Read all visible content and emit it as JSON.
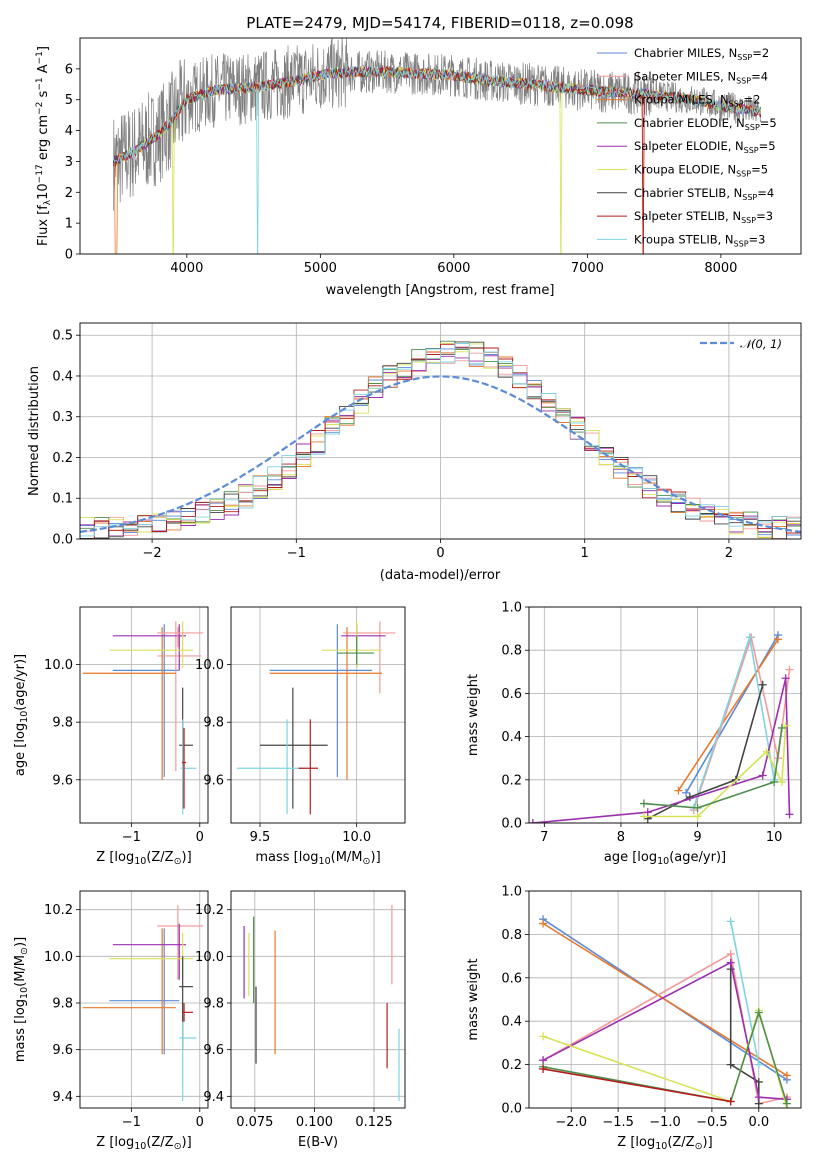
{
  "figure": {
    "title": "PLATE=2479, MJD=54174, FIBERID=0118, z=0.098"
  },
  "colors": {
    "chabrier_miles": "#5b8bd9",
    "salpeter_miles": "#f39a9a",
    "kroupa_miles": "#e8782a",
    "chabrier_elodie": "#4e8f4e",
    "salpeter_elodie": "#9b2fb0",
    "kroupa_elodie": "#d7e256",
    "chabrier_stelib": "#444444",
    "salpeter_stelib": "#b51d1d",
    "kroupa_stelib": "#7fd4e0",
    "data": "#808080",
    "normal": "#5b8bd9"
  },
  "legend_entries": [
    {
      "key": "chabrier_miles",
      "base": "Chabrier MILES, N",
      "sub": "SSP",
      "tail": "=2"
    },
    {
      "key": "salpeter_miles",
      "base": "Salpeter MILES, N",
      "sub": "SSP",
      "tail": "=4"
    },
    {
      "key": "kroupa_miles",
      "base": "Kroupa MILES, N",
      "sub": "SSP",
      "tail": "=2"
    },
    {
      "key": "chabrier_elodie",
      "base": "Chabrier ELODIE, N",
      "sub": "SSP",
      "tail": "=5"
    },
    {
      "key": "salpeter_elodie",
      "base": "Salpeter ELODIE, N",
      "sub": "SSP",
      "tail": "=5"
    },
    {
      "key": "kroupa_elodie",
      "base": "Kroupa ELODIE, N",
      "sub": "SSP",
      "tail": "=5"
    },
    {
      "key": "chabrier_stelib",
      "base": "Chabrier STELIB, N",
      "sub": "SSP",
      "tail": "=4"
    },
    {
      "key": "salpeter_stelib",
      "base": "Salpeter STELIB, N",
      "sub": "SSP",
      "tail": "=3"
    },
    {
      "key": "kroupa_stelib",
      "base": "Kroupa STELIB, N",
      "sub": "SSP",
      "tail": "=3"
    }
  ],
  "chart_data": [
    {
      "id": "spectrum",
      "type": "line",
      "xlabel": "wavelength [Angstrom, rest frame]",
      "ylabel": "Flux [f_λ 10^-17 erg cm^-2 s^-1 A^-1]",
      "xlim": [
        3200,
        8600
      ],
      "ylim": [
        0,
        7
      ],
      "xticks": [
        4000,
        5000,
        6000,
        7000,
        8000
      ],
      "yticks": [
        0,
        1,
        2,
        3,
        4,
        5,
        6
      ],
      "continuum_x": [
        3450,
        3500,
        3600,
        3700,
        3800,
        3900,
        4000,
        4200,
        4500,
        4800,
        5000,
        5200,
        5500,
        6000,
        6300,
        6600,
        7000,
        7400,
        7800,
        8000,
        8300
      ],
      "continuum_y": [
        3.0,
        3.1,
        3.3,
        3.6,
        3.9,
        4.4,
        5.0,
        5.3,
        5.4,
        5.6,
        5.8,
        5.9,
        5.9,
        5.8,
        5.6,
        5.5,
        5.3,
        5.2,
        5.0,
        4.8,
        4.6
      ],
      "x_range": [
        3450,
        8300
      ]
    },
    {
      "id": "residuals",
      "type": "step",
      "xlabel": "(data-model)/error",
      "ylabel": "Normed distribution",
      "xlim": [
        -2.5,
        2.5
      ],
      "ylim": [
        0,
        0.53
      ],
      "xticks": [
        -2,
        -1,
        0,
        1,
        2
      ],
      "yticks": [
        0.0,
        0.1,
        0.2,
        0.3,
        0.4,
        0.5
      ],
      "legend": "N(0,1)",
      "bins": [
        -2.5,
        2.5
      ],
      "bin_width": 0.1
    },
    {
      "id": "age_vs_Z",
      "type": "errorbar",
      "xlabel": "Z [log10(Z/Z⊙)]",
      "ylabel": "age  [log10(age/yr)]",
      "xlim": [
        -1.75,
        0.12
      ],
      "ylim": [
        9.45,
        10.2
      ],
      "xticks": [
        -1,
        0
      ],
      "yticks": [
        9.6,
        9.8,
        10.0
      ],
      "points": [
        {
          "k": "chabrier_miles",
          "x": -0.52,
          "y": 9.98,
          "xe": [
            -1.27,
            -0.3
          ],
          "ye": [
            9.61,
            10.14
          ]
        },
        {
          "k": "salpeter_miles",
          "x": -0.35,
          "y": 10.03,
          "xe": [
            -0.62,
            0.02
          ],
          "ye": [
            9.63,
            10.15
          ]
        },
        {
          "k": "kroupa_miles",
          "x": -0.55,
          "y": 9.97,
          "xe": [
            -1.71,
            -0.35
          ],
          "ye": [
            9.6,
            10.13
          ]
        },
        {
          "k": "salpeter_elodie",
          "x": -0.3,
          "y": 10.1,
          "xe": [
            -1.27,
            -0.2
          ],
          "ye": [
            9.98,
            10.14
          ]
        },
        {
          "k": "kroupa_elodie",
          "x": -0.25,
          "y": 10.05,
          "xe": [
            -1.32,
            -0.1
          ],
          "ye": [
            9.99,
            10.15
          ]
        },
        {
          "k": "chabrier_stelib",
          "x": -0.25,
          "y": 9.72,
          "xe": [
            -0.3,
            -0.1
          ],
          "ye": [
            9.5,
            9.92
          ]
        },
        {
          "k": "kroupa_stelib",
          "x": -0.25,
          "y": 9.64,
          "xe": [
            -0.28,
            -0.05
          ],
          "ye": [
            9.48,
            9.81
          ]
        },
        {
          "k": "salpeter_stelib",
          "x": -0.23,
          "y": 9.66,
          "xe": [
            -0.26,
            -0.2
          ],
          "ye": [
            9.5,
            9.78
          ]
        },
        {
          "k": "salpeter_miles",
          "x": -0.32,
          "y": 10.11,
          "xe": [
            -0.62,
            0.05
          ],
          "ye": [
            10.06,
            10.13
          ]
        }
      ]
    },
    {
      "id": "age_vs_mass",
      "type": "errorbar",
      "xlabel": "mass [log10(M/M⊙)]",
      "ylabel": "",
      "xlim": [
        9.35,
        10.25
      ],
      "ylim": [
        9.45,
        10.2
      ],
      "xticks": [
        9.5,
        10.0
      ],
      "yticks": [
        9.6,
        9.8,
        10.0
      ],
      "points": [
        {
          "k": "chabrier_miles",
          "x": 9.9,
          "y": 9.98,
          "xe": [
            9.55,
            10.08
          ],
          "ye": [
            9.61,
            10.14
          ]
        },
        {
          "k": "salpeter_miles",
          "x": 10.12,
          "y": 10.11,
          "xe": [
            9.93,
            10.2
          ],
          "ye": [
            9.9,
            10.15
          ]
        },
        {
          "k": "kroupa_miles",
          "x": 9.95,
          "y": 9.97,
          "xe": [
            9.55,
            10.13
          ],
          "ye": [
            9.6,
            10.13
          ]
        },
        {
          "k": "salpeter_elodie",
          "x": 10.0,
          "y": 10.1,
          "xe": [
            9.92,
            10.15
          ],
          "ye": [
            9.99,
            10.14
          ]
        },
        {
          "k": "kroupa_elodie",
          "x": 10.0,
          "y": 10.05,
          "xe": [
            9.82,
            10.13
          ],
          "ye": [
            9.99,
            10.15
          ]
        },
        {
          "k": "chabrier_elodie",
          "x": 10.0,
          "y": 10.04,
          "xe": [
            9.9,
            10.09
          ],
          "ye": [
            10.0,
            10.1
          ]
        },
        {
          "k": "chabrier_stelib",
          "x": 9.67,
          "y": 9.72,
          "xe": [
            9.5,
            9.85
          ],
          "ye": [
            9.5,
            9.92
          ]
        },
        {
          "k": "kroupa_stelib",
          "x": 9.64,
          "y": 9.64,
          "xe": [
            9.38,
            9.72
          ],
          "ye": [
            9.48,
            9.81
          ]
        },
        {
          "k": "salpeter_stelib",
          "x": 9.76,
          "y": 9.64,
          "xe": [
            9.7,
            9.8
          ],
          "ye": [
            9.48,
            9.81
          ]
        }
      ]
    },
    {
      "id": "weight_vs_age",
      "type": "line",
      "xlabel": "age  [log10(age/yr)]",
      "ylabel": "mass weight",
      "xlim": [
        6.8,
        10.35
      ],
      "ylim": [
        0,
        1
      ],
      "xticks": [
        7,
        8,
        9,
        10
      ],
      "yticks": [
        0.0,
        0.2,
        0.4,
        0.6,
        0.8,
        1.0
      ],
      "series": [
        {
          "k": "chabrier_miles",
          "x": [
            8.85,
            10.05
          ],
          "y": [
            0.14,
            0.87
          ]
        },
        {
          "k": "kroupa_miles",
          "x": [
            8.75,
            10.05
          ],
          "y": [
            0.15,
            0.85
          ]
        },
        {
          "k": "salpeter_miles",
          "x": [
            8.95,
            9.7,
            10.05,
            10.2
          ],
          "y": [
            0.06,
            0.86,
            0.3,
            0.71
          ]
        },
        {
          "k": "kroupa_stelib",
          "x": [
            8.95,
            9.68,
            10.0
          ],
          "y": [
            0.07,
            0.86,
            0.2
          ]
        },
        {
          "k": "chabrier_stelib",
          "x": [
            8.35,
            8.9,
            9.5,
            9.85
          ],
          "y": [
            0.02,
            0.12,
            0.2,
            0.64
          ]
        },
        {
          "k": "salpeter_elodie",
          "x": [
            6.85,
            8.35,
            9.85,
            10.15,
            10.2
          ],
          "y": [
            0.0,
            0.05,
            0.22,
            0.67,
            0.04
          ]
        },
        {
          "k": "kroupa_elodie",
          "x": [
            8.3,
            9.0,
            9.9,
            10.1,
            10.15
          ],
          "y": [
            0.03,
            0.03,
            0.33,
            0.19,
            0.45
          ]
        },
        {
          "k": "chabrier_elodie",
          "x": [
            8.3,
            9.0,
            10.0,
            10.1
          ],
          "y": [
            0.09,
            0.07,
            0.19,
            0.44
          ]
        }
      ]
    },
    {
      "id": "mass_vs_Z",
      "type": "errorbar",
      "xlabel": "Z [log10(Z/Z⊙)]",
      "ylabel": "mass [log10(M/M⊙)]",
      "xlim": [
        -1.75,
        0.12
      ],
      "ylim": [
        9.35,
        10.28
      ],
      "xticks": [
        -1,
        0
      ],
      "yticks": [
        9.4,
        9.6,
        9.8,
        10.0,
        10.2
      ],
      "points": [
        {
          "k": "chabrier_miles",
          "x": -0.52,
          "y": 9.81,
          "xe": [
            -1.32,
            -0.3
          ],
          "ye": [
            9.58,
            10.12
          ]
        },
        {
          "k": "kroupa_miles",
          "x": -0.55,
          "y": 9.78,
          "xe": [
            -1.71,
            -0.35
          ],
          "ye": [
            9.58,
            10.12
          ]
        },
        {
          "k": "salpeter_miles",
          "x": -0.32,
          "y": 10.13,
          "xe": [
            -0.62,
            0.05
          ],
          "ye": [
            9.9,
            10.22
          ]
        },
        {
          "k": "salpeter_elodie",
          "x": -0.3,
          "y": 10.05,
          "xe": [
            -1.27,
            -0.2
          ],
          "ye": [
            9.9,
            10.14
          ]
        },
        {
          "k": "kroupa_elodie",
          "x": -0.25,
          "y": 9.99,
          "xe": [
            -1.32,
            -0.1
          ],
          "ye": [
            9.9,
            10.1
          ]
        },
        {
          "k": "chabrier_stelib",
          "x": -0.25,
          "y": 9.87,
          "xe": [
            -0.3,
            -0.1
          ],
          "ye": [
            9.6,
            10.0
          ]
        },
        {
          "k": "salpeter_stelib",
          "x": -0.23,
          "y": 9.76,
          "xe": [
            -0.26,
            -0.1
          ],
          "ye": [
            9.72,
            9.8
          ]
        },
        {
          "k": "kroupa_stelib",
          "x": -0.25,
          "y": 9.65,
          "xe": [
            -0.3,
            -0.05
          ],
          "ye": [
            9.38,
            9.72
          ]
        }
      ]
    },
    {
      "id": "mass_vs_ebv",
      "type": "errorbar",
      "xlabel": "E(B-V)",
      "ylabel": "",
      "xlim": [
        0.065,
        0.138
      ],
      "ylim": [
        9.35,
        10.28
      ],
      "xticks": [
        0.075,
        0.1,
        0.125
      ],
      "yticks": [
        9.4,
        9.6,
        9.8,
        10.0,
        10.2
      ],
      "points": [
        {
          "k": "salpeter_elodie",
          "x": 0.0705,
          "y": 9.98,
          "xe": [
            0.0705,
            0.0705
          ],
          "ye": [
            9.82,
            10.13
          ]
        },
        {
          "k": "kroupa_elodie",
          "x": 0.0725,
          "y": 10.0,
          "xe": [
            0.0725,
            0.0725
          ],
          "ye": [
            9.83,
            10.1
          ]
        },
        {
          "k": "chabrier_elodie",
          "x": 0.0745,
          "y": 9.96,
          "xe": [
            0.0745,
            0.0745
          ],
          "ye": [
            9.8,
            10.17
          ]
        },
        {
          "k": "chabrier_stelib",
          "x": 0.0755,
          "y": 9.7,
          "xe": [
            0.0755,
            0.0755
          ],
          "ye": [
            9.54,
            9.87
          ]
        },
        {
          "k": "kroupa_miles",
          "x": 0.0835,
          "y": 9.85,
          "xe": [
            0.0835,
            0.0835
          ],
          "ye": [
            9.58,
            10.11
          ]
        },
        {
          "k": "salpeter_miles",
          "x": 0.1325,
          "y": 10.05,
          "xe": [
            0.1325,
            0.1325
          ],
          "ye": [
            9.88,
            10.22
          ]
        },
        {
          "k": "salpeter_stelib",
          "x": 0.1305,
          "y": 9.66,
          "xe": [
            0.1305,
            0.1305
          ],
          "ye": [
            9.52,
            9.8
          ]
        },
        {
          "k": "kroupa_stelib",
          "x": 0.1355,
          "y": 9.55,
          "xe": [
            0.1355,
            0.1355
          ],
          "ye": [
            9.38,
            9.69
          ]
        }
      ]
    },
    {
      "id": "weight_vs_Z",
      "type": "line",
      "xlabel": "Z [log10(Z/Z⊙)]",
      "ylabel": "mass weight",
      "xlim": [
        -2.45,
        0.45
      ],
      "ylim": [
        0,
        1
      ],
      "xticks": [
        -2.0,
        -1.5,
        -1.0,
        -0.5,
        0.0
      ],
      "yticks": [
        0.0,
        0.2,
        0.4,
        0.6,
        0.8,
        1.0
      ],
      "xticklabels": [
        "−2.0",
        "−1.5",
        "−1.0",
        "−0.5",
        "0.0"
      ],
      "series": [
        {
          "k": "chabrier_miles",
          "x": [
            -2.3,
            0.3
          ],
          "y": [
            0.87,
            0.13
          ]
        },
        {
          "k": "kroupa_miles",
          "x": [
            -2.3,
            0.3
          ],
          "y": [
            0.85,
            0.15
          ]
        },
        {
          "k": "salpeter_miles",
          "x": [
            -2.3,
            -0.3,
            0.0,
            0.3
          ],
          "y": [
            0.22,
            0.71,
            0.02,
            0.05
          ]
        },
        {
          "k": "kroupa_stelib",
          "x": [
            -0.3,
            0.0
          ],
          "y": [
            0.86,
            0.2
          ]
        },
        {
          "k": "chabrier_stelib",
          "x": [
            -0.3,
            -0.3,
            0.0,
            0.0
          ],
          "y": [
            0.64,
            0.2,
            0.12,
            0.02
          ]
        },
        {
          "k": "salpeter_elodie",
          "x": [
            -2.3,
            -0.3,
            0.0,
            0.3
          ],
          "y": [
            0.22,
            0.67,
            0.05,
            0.04
          ]
        },
        {
          "k": "kroupa_elodie",
          "x": [
            -2.3,
            -0.3,
            0.0,
            0.3
          ],
          "y": [
            0.33,
            0.03,
            0.45,
            0.0
          ]
        },
        {
          "k": "chabrier_elodie",
          "x": [
            -2.3,
            -0.3,
            0.0,
            0.3
          ],
          "y": [
            0.19,
            0.03,
            0.44,
            0.02
          ]
        },
        {
          "k": "salpeter_stelib",
          "x": [
            -2.3,
            -0.3
          ],
          "y": [
            0.18,
            0.03
          ]
        }
      ]
    }
  ]
}
